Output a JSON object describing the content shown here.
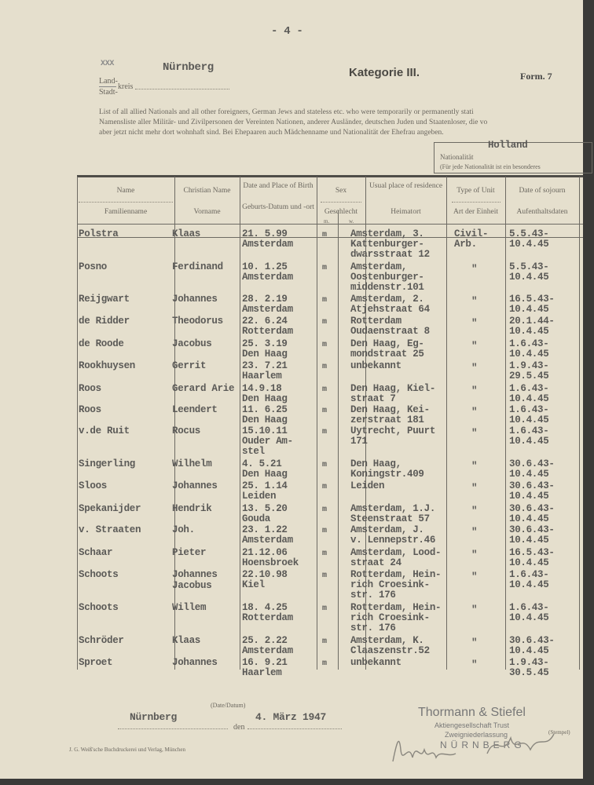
{
  "header": {
    "page_number": "- 4 -",
    "xxx": "XXX",
    "city": "Nürnberg",
    "land": "Land-",
    "stadt": "Stadt-",
    "kreis": "kreis",
    "category": "Kategorie III.",
    "form": "Form. 7",
    "intro_en": "List of all allied Nationals and all other foreigners, German Jews and stateless etc. who were temporarily or permanently stati",
    "intro_de1": "Namensliste aller Militär- und Zivilpersonen der Vereinten Nationen, anderer Ausländer, deutschen Juden und Staatenloser, die vo",
    "intro_de2": "aber jetzt nicht mehr dort wohnhaft sind. Bei Ehepaaren auch Mädchenname und Nationalität der Ehefrau angeben.",
    "nationality_value": "Holland",
    "nationality_label": "Nationalität",
    "nationality_note": "(Für jede Nationalität ist ein besonderes"
  },
  "columns": [
    {
      "en": "Name",
      "de": "Familienname"
    },
    {
      "en": "Christian Name",
      "de": "Vorname"
    },
    {
      "en": "Date and Place of Birth",
      "de": "Geburts-Datum und -ort"
    },
    {
      "en": "Sex",
      "de": "Geschlecht",
      "m": "m.",
      "w": "w."
    },
    {
      "en": "Usual place of residence",
      "de": "Heimatort"
    },
    {
      "en": "Type of Unit",
      "de": "Art der Einheit"
    },
    {
      "en": "Date of sojourn",
      "de": "Aufenthaltsdaten"
    }
  ],
  "rows": [
    {
      "name": "Polstra",
      "first": "Klaas",
      "birth": [
        "21. 5.99",
        "Amsterdam"
      ],
      "sex": "m",
      "residence": [
        "Amsterdam, 3.",
        "Kattenburger-",
        "dwarsstraat 12"
      ],
      "unit": [
        "Civil-",
        "Arb."
      ],
      "sojourn": [
        "5.5.43-",
        "10.4.45"
      ]
    },
    {
      "name": "Posno",
      "first": "Ferdinand",
      "birth": [
        "10. 1.25",
        "Amsterdam"
      ],
      "sex": "m",
      "residence": [
        "Amsterdam,",
        "Oostenburger-",
        "middenstr.101"
      ],
      "unit": [
        "\""
      ],
      "sojourn": [
        "5.5.43-",
        "10.4.45"
      ]
    },
    {
      "name": "Reijgwart",
      "first": "Johannes",
      "birth": [
        "28. 2.19",
        "Amsterdam"
      ],
      "sex": "m",
      "residence": [
        "Amsterdam, 2.",
        "Atjehstraat 64"
      ],
      "unit": [
        "\""
      ],
      "sojourn": [
        "16.5.43-",
        "10.4.45"
      ]
    },
    {
      "name": "de Ridder",
      "first": "Theodorus",
      "birth": [
        "22. 6.24",
        "Rotterdam"
      ],
      "sex": "m",
      "residence": [
        "Rotterdam",
        "Oudaenstraat 8"
      ],
      "unit": [
        "\""
      ],
      "sojourn": [
        "20.1.44-",
        "10.4.45"
      ]
    },
    {
      "name": "de Roode",
      "first": "Jacobus",
      "birth": [
        "25. 3.19",
        "Den Haag"
      ],
      "sex": "m",
      "residence": [
        "Den Haag, Eg-",
        "mondstraat 25"
      ],
      "unit": [
        "\""
      ],
      "sojourn": [
        "1.6.43-",
        "10.4.45"
      ]
    },
    {
      "name": "Rookhuysen",
      "first": "Gerrit",
      "birth": [
        "23. 7.21",
        "Haarlem"
      ],
      "sex": "m",
      "residence": [
        "unbekannt"
      ],
      "unit": [
        "\""
      ],
      "sojourn": [
        "1.9.43-",
        "29.5.45"
      ]
    },
    {
      "name": "Roos",
      "first": "Gerard Arie",
      "birth": [
        "14.9.18",
        "Den Haag"
      ],
      "sex": "m",
      "residence": [
        "Den Haag, Kiel-",
        "straat 7"
      ],
      "unit": [
        "\""
      ],
      "sojourn": [
        "1.6.43-",
        "10.4.45"
      ]
    },
    {
      "name": "Roos",
      "first": "Leendert",
      "birth": [
        "11. 6.25",
        "Den Haag"
      ],
      "sex": "m",
      "residence": [
        "Den Haag, Kei-",
        "zerstraat 181"
      ],
      "unit": [
        "\""
      ],
      "sojourn": [
        "1.6.43-",
        "10.4.45"
      ]
    },
    {
      "name": "v.de Ruit",
      "first": "Rocus",
      "birth": [
        "15.10.11",
        "Ouder Am-",
        "stel"
      ],
      "sex": "m",
      "residence": [
        "Uytrecht, Puurt",
        "171"
      ],
      "unit": [
        "\""
      ],
      "sojourn": [
        "1.6.43-",
        "10.4.45"
      ]
    },
    {
      "name": "Singerling",
      "first": "Wilhelm",
      "birth": [
        "4. 5.21",
        "Den Haag"
      ],
      "sex": "m",
      "residence": [
        "Den Haag,",
        "Koningstr.409"
      ],
      "unit": [
        "\""
      ],
      "sojourn": [
        "30.6.43-",
        "10.4.45"
      ]
    },
    {
      "name": "Sloos",
      "first": "Johannes",
      "birth": [
        "25. 1.14",
        "Leiden"
      ],
      "sex": "m",
      "residence": [
        "Leiden"
      ],
      "unit": [
        "\""
      ],
      "sojourn": [
        "30.6.43-",
        "10.4.45"
      ]
    },
    {
      "name": "Spekanijder",
      "first": "Hendrik",
      "birth": [
        "13. 5.20",
        "Gouda"
      ],
      "sex": "m",
      "residence": [
        "Amsterdam, 1.J.",
        "Steenstraat 57"
      ],
      "unit": [
        "\""
      ],
      "sojourn": [
        "30.6.43-",
        "10.4.45"
      ]
    },
    {
      "name": "v. Straaten",
      "first": "Joh.",
      "birth": [
        "23. 1.22",
        "Amsterdam"
      ],
      "sex": "m",
      "residence": [
        "Amsterdam, J.",
        "v. Lennepstr.46"
      ],
      "unit": [
        "\""
      ],
      "sojourn": [
        "30.6.43-",
        "10.4.45"
      ]
    },
    {
      "name": "Schaar",
      "first": "Pieter",
      "birth": [
        "21.12.06",
        "Hoensbroek"
      ],
      "sex": "m",
      "residence": [
        "Amsterdam, Lood-",
        "straat 24"
      ],
      "unit": [
        "\""
      ],
      "sojourn": [
        "16.5.43-",
        "10.4.45"
      ]
    },
    {
      "name": "Schoots",
      "first": "Johannes",
      "first2": "Jacobus",
      "birth": [
        "22.10.98",
        "Kiel"
      ],
      "sex": "m",
      "residence": [
        "Rotterdam, Hein-",
        "rich Croesink-",
        "str. 176"
      ],
      "unit": [
        "\""
      ],
      "sojourn": [
        "1.6.43-",
        "10.4.45"
      ]
    },
    {
      "name": "Schoots",
      "first": "Willem",
      "birth": [
        "18. 4.25",
        "Rotterdam"
      ],
      "sex": "m",
      "residence": [
        "Rotterdam, Hein-",
        "rich Croesink-",
        "str. 176"
      ],
      "unit": [
        "\""
      ],
      "sojourn": [
        "1.6.43-",
        "10.4.45"
      ]
    },
    {
      "name": "Schröder",
      "first": "Klaas",
      "birth": [
        "25. 2.22",
        "Amsterdam"
      ],
      "sex": "m",
      "residence": [
        "Amsterdam, K.",
        "Claaszenstr.52"
      ],
      "unit": [
        "\""
      ],
      "sojourn": [
        "30.6.43-",
        "10.4.45"
      ]
    },
    {
      "name": "Sproet",
      "first": "Johannes",
      "birth": [
        "16. 9.21",
        "Haarlem"
      ],
      "sex": "m",
      "residence": [
        "unbekannt"
      ],
      "unit": [
        "\""
      ],
      "sojourn": [
        "1.9.43-",
        "30.5.45"
      ]
    }
  ],
  "footer": {
    "date_label": "(Date/Datum)",
    "place": "Nürnberg",
    "den": "den",
    "date": "4. März 1947",
    "stamp_company": "Thormann & Stiefel",
    "stamp_line2": "Aktiengesellschaft Trust",
    "stamp_line3": "Zweigniederlassung",
    "stamp_city": "NÜRNBERG",
    "stamp_label": "(Stempel)",
    "printer": "J. G. Weiß'sche Buchdruckerei und Verlag, München"
  }
}
